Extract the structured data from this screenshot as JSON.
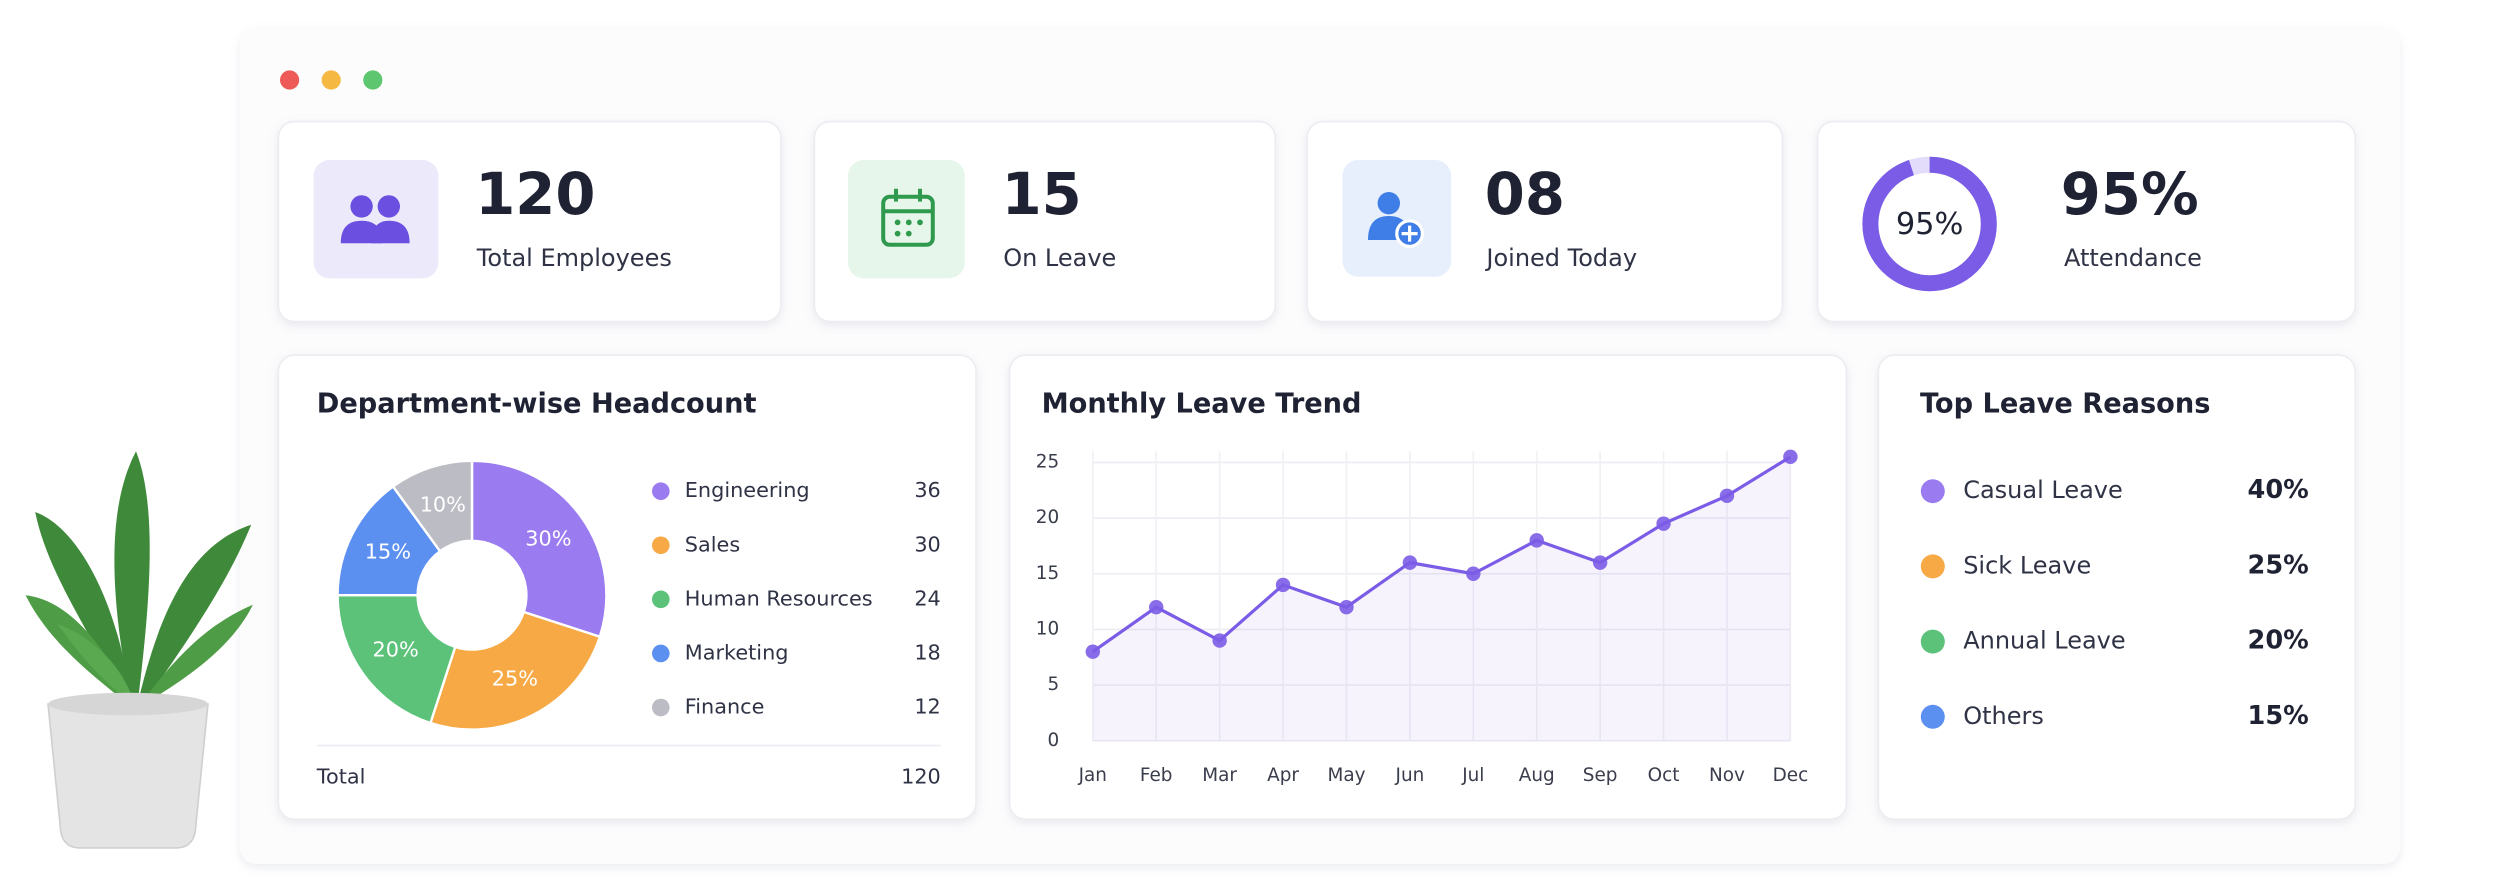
{
  "stats": [
    {
      "value": "120",
      "label": "Total Employees"
    },
    {
      "value": "15",
      "label": "On Leave"
    },
    {
      "value": "08",
      "label": "Joined Today"
    },
    {
      "value": {
        "value": 95,
        "label": "95%"
      },
      "label": "Attendance",
      "color": "#7b5ce6"
    }
  ],
  "chart_data": [
    {
      "type": "pie",
      "title": "Department-wise Headcount",
      "categories": [
        "Engineering",
        "Sales",
        "Human Resources",
        "Marketing",
        "Finance"
      ],
      "values": [
        36,
        30,
        24,
        18,
        12
      ],
      "value_labels": [
        "30%",
        "25%",
        "20%",
        "15%",
        "10%"
      ],
      "colors": [
        "#9b7cf0",
        "#f6a945",
        "#5cc27a",
        "#5b8ff0",
        "#bcbcc4"
      ],
      "total_label": "Total",
      "total": 120
    },
    {
      "type": "line",
      "title": "Monthly Leave Trend",
      "categories": [
        "Jan",
        "Feb",
        "Mar",
        "Apr",
        "May",
        "Jun",
        "Jul",
        "Aug",
        "Sep",
        "Oct",
        "Nov",
        "Dec"
      ],
      "values": [
        8,
        12,
        9,
        14,
        12,
        16,
        15,
        18,
        16,
        19.5,
        22,
        25.5
      ],
      "color": "#7b5ce6",
      "ylim": [
        0,
        26
      ],
      "yticks": [
        0,
        5,
        10,
        15,
        20,
        25
      ],
      "grid": true
    }
  ],
  "reasons": {
    "title": "Top Leave Reasons",
    "items": [
      {
        "name": "Casual Leave",
        "value": "40%",
        "color": "#9b7cf0"
      },
      {
        "name": "Sick Leave",
        "value": "25%",
        "color": "#f6a945"
      },
      {
        "name": "Annual Leave",
        "value": "20%",
        "color": "#5cc27a"
      },
      {
        "name": "Others",
        "value": "15%",
        "color": "#5b8ff0"
      }
    ]
  }
}
